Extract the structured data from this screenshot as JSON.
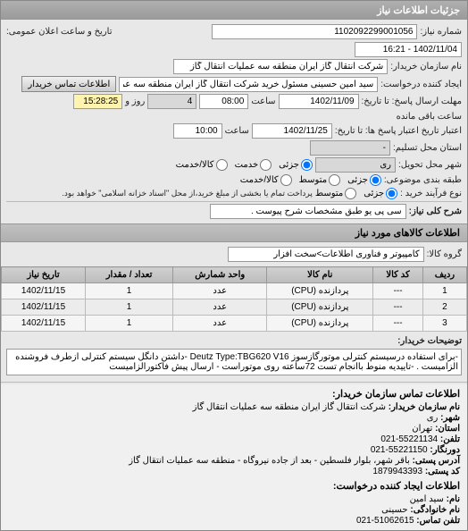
{
  "header": {
    "title": "جزئیات اطلاعات نیاز"
  },
  "form": {
    "request_no_label": "شماره نیاز:",
    "request_no": "1102092299001056",
    "announce_label": "تاریخ و ساعت اعلان عمومی:",
    "announce_date": "1402/11/04 - 16:21",
    "buyer_org_label": "نام سازمان خریدار:",
    "buyer_org": "شرکت انتقال گاز ایران منطقه سه عملیات انتقال گاز",
    "requester_label": "ایجاد کننده درخواست:",
    "requester": "سید امین حسینی مسئول خرید شرکت انتقال گاز ایران منطقه سه عملیات انتق",
    "contact_btn": "اطلاعات تماس خریدار",
    "deadline_label": "مهلت ارسال پاسخ: تا تاریخ:",
    "deadline_date": "1402/11/09",
    "time_label": "ساعت",
    "deadline_time": "08:00",
    "days_value": "4",
    "days_label": "روز و",
    "remain_time": "15:28:25",
    "remain_label": "ساعت باقی مانده",
    "valid_label": "اعتبار تاریخ اعتبار پاسخ ها: تا تاریخ:",
    "valid_date": "1402/11/25",
    "valid_time": "10:00",
    "province_label": "استان محل تسلیم:",
    "province": "-",
    "city_label": "شهر محل تحویل:",
    "city": "ری",
    "part_label": "جزئی",
    "service_label": "خدمت",
    "goods_label": "کالا/خدمت",
    "packing_label": "طبقه بندی موضوعی:",
    "packing_part": "جزئی",
    "packing_mid": "متوسط",
    "packing_goods": "کالا/خدمت",
    "payment_label": "نوع فرآیند خرید :",
    "payment_part": "جزئی",
    "payment_mid": "متوسط",
    "payment_note": "پرداخت تمام یا بخشی از مبلغ خرید،از محل \"اسناد خزانه اسلامی\" خواهد بود.",
    "desc_label": "شرح کلی نیاز:",
    "desc": "سی پی یو طبق مشخصات شرح پیوست ."
  },
  "goods_section": {
    "title": "اطلاعات کالاهای مورد نیاز",
    "group_label": "گروه کالا:",
    "group": "کامپیوتر و فناوری اطلاعات>سخت افزار"
  },
  "table": {
    "cols": [
      "ردیف",
      "کد کالا",
      "نام کالا",
      "واحد شمارش",
      "تعداد / مقدار",
      "تاریخ نیاز"
    ],
    "rows": [
      [
        "1",
        "---",
        "پردازنده (CPU)",
        "عدد",
        "1",
        "1402/11/15"
      ],
      [
        "2",
        "---",
        "پردازنده (CPU)",
        "عدد",
        "1",
        "1402/11/15"
      ],
      [
        "3",
        "---",
        "پردازنده (CPU)",
        "عدد",
        "1",
        "1402/11/15"
      ]
    ]
  },
  "notes": {
    "label": "توضیحات خریدار:",
    "text": "-برای استفاده درسیستم کنترلی موتورگازسوز Deutz Type:TBG620 V16 -داشتن دانگل سیستم کنترلی ازطرف فروشنده الزامیست . -تاییدیه منوط باانجام تست 72ساعته روی موتوراست - ارسال پیش فاکتورالزامیست"
  },
  "contact": {
    "header": "اطلاعات تماس سازمان خریدار:",
    "org_label": "نام سازمان خریدار:",
    "org": "شرکت انتقال گاز ایران منطقه سه عملیات انتقال گاز",
    "city_label": "شهر:",
    "city": "ری",
    "province_label": "استان:",
    "province": "تهران",
    "phone_label": "تلفن:",
    "phone": "55221134-021",
    "fax_label": "دورنگار:",
    "fax": "55221150-021",
    "address_label": "آدرس پستی:",
    "address": "باقر شهر، بلوار فلسطین - بعد از جاده نیروگاه - منطقه سه عملیات انتقال گاز",
    "postal_label": "کد پستی:",
    "postal": "1879943393",
    "creator_header": "اطلاعات ایجاد کننده درخواست:",
    "name_label": "نام:",
    "name": "سید امین",
    "family_label": "نام خانوادگی:",
    "family": "حسینی",
    "tel_label": "تلفن تماس:",
    "tel": "51062615-021"
  }
}
